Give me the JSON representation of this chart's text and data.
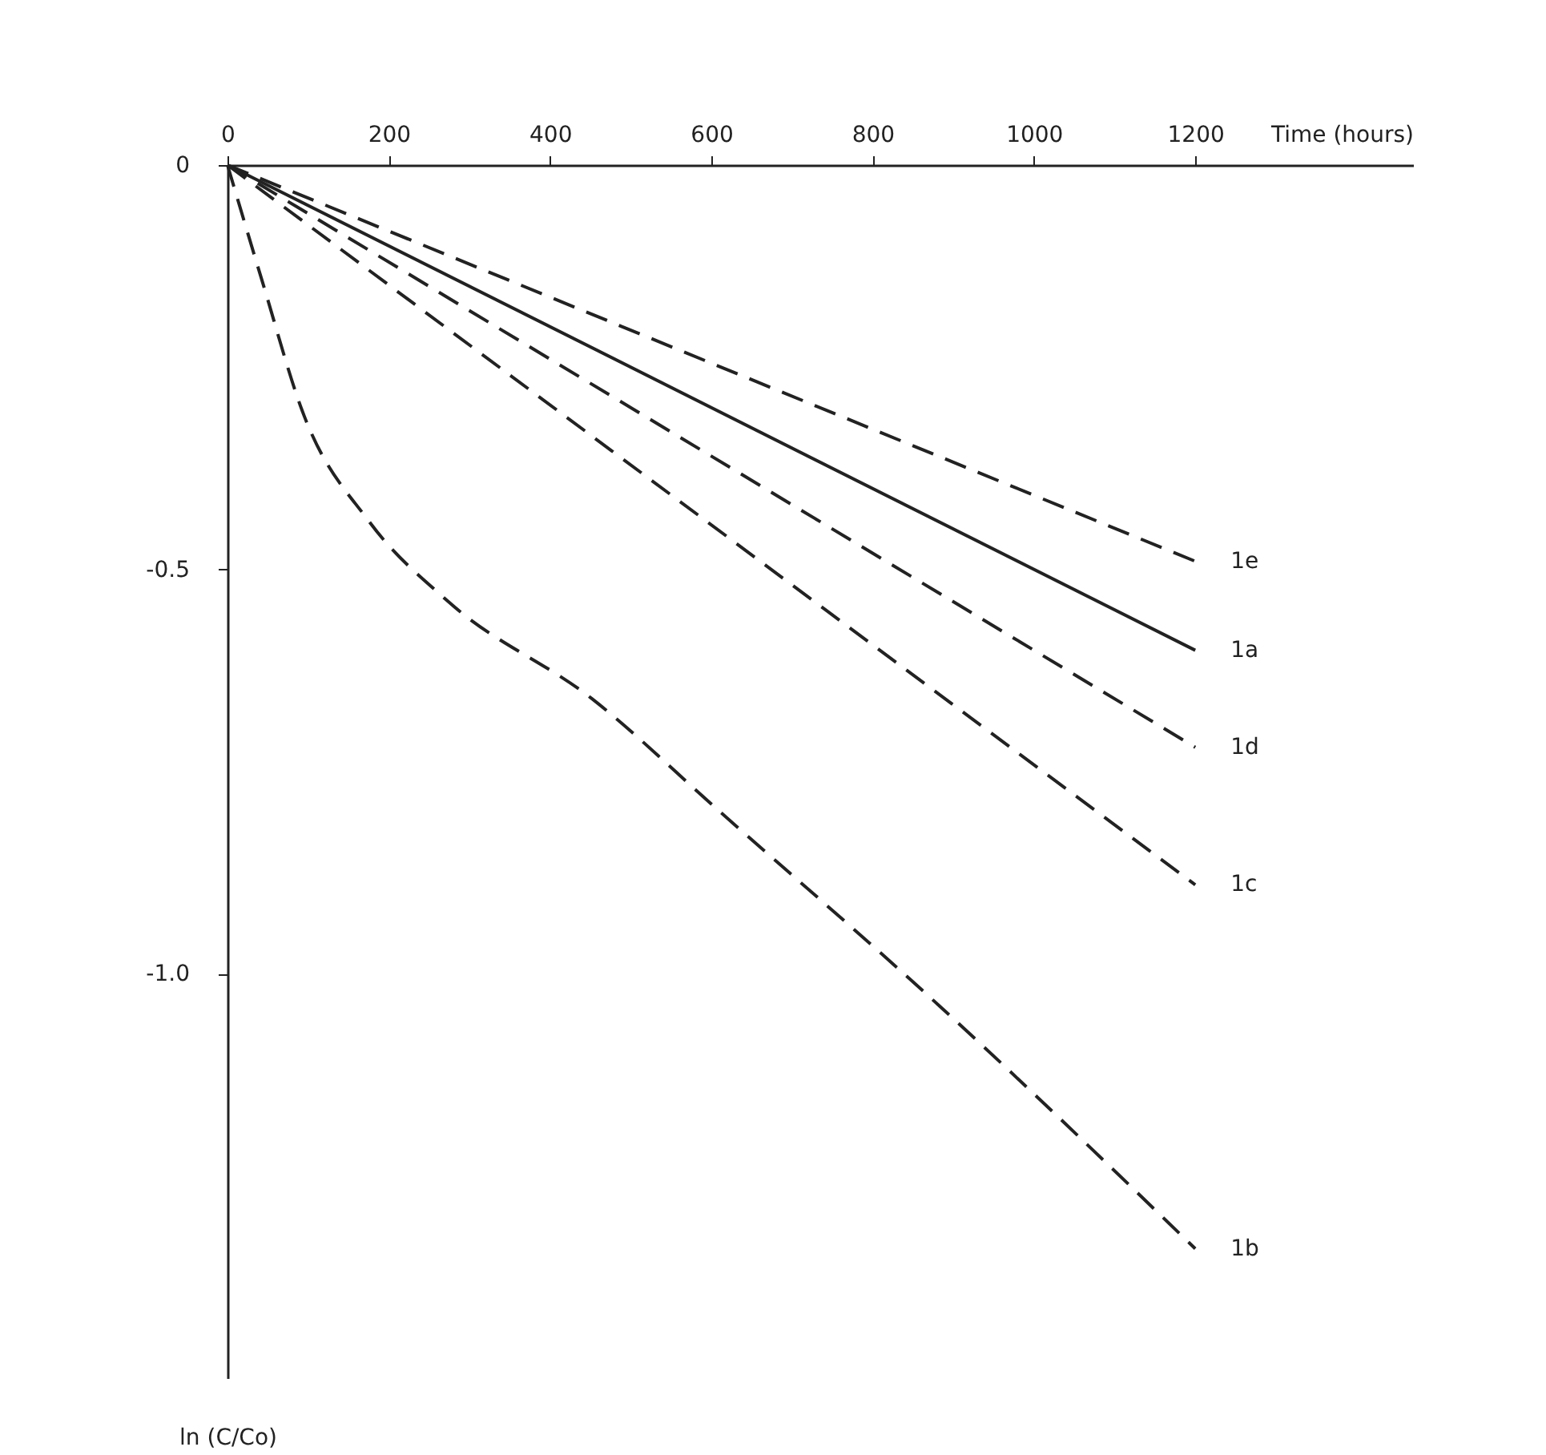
{
  "chart_data": {
    "type": "line",
    "xlabel": "Time (hours)",
    "ylabel": "ln (C/Co)",
    "xlim": [
      0,
      1470
    ],
    "ylim": [
      -1.5,
      0
    ],
    "xticks": [
      0,
      200,
      400,
      600,
      800,
      1000,
      1200
    ],
    "yticks": [
      0,
      {
        "value": -0.5,
        "label": "-0.5"
      },
      {
        "value": -1,
        "label": "-1.0"
      }
    ],
    "grid": false,
    "marker": "none",
    "series": [
      {
        "name": "1e",
        "color": "#222222",
        "line_style": "dashed",
        "x": [
          0,
          1200
        ],
        "values": [
          0,
          -0.49
        ]
      },
      {
        "name": "1a",
        "color": "#222222",
        "line_style": "solid",
        "x": [
          0,
          1200
        ],
        "values": [
          0,
          -0.6
        ]
      },
      {
        "name": "1d",
        "color": "#222222",
        "line_style": "dashed",
        "x": [
          0,
          1200
        ],
        "values": [
          0,
          -0.72
        ]
      },
      {
        "name": "1c",
        "color": "#222222",
        "line_style": "dashed",
        "x": [
          0,
          1200
        ],
        "values": [
          0,
          -0.89
        ]
      },
      {
        "name": "1b",
        "color": "#222222",
        "line_style": "dashed",
        "x": [
          0,
          42,
          95,
          175,
          274,
          452,
          611,
          883,
          1200
        ],
        "values": [
          0,
          -0.14,
          -0.31,
          -0.44,
          -0.54,
          -0.66,
          -0.8,
          -1.04,
          -1.34
        ]
      }
    ]
  }
}
